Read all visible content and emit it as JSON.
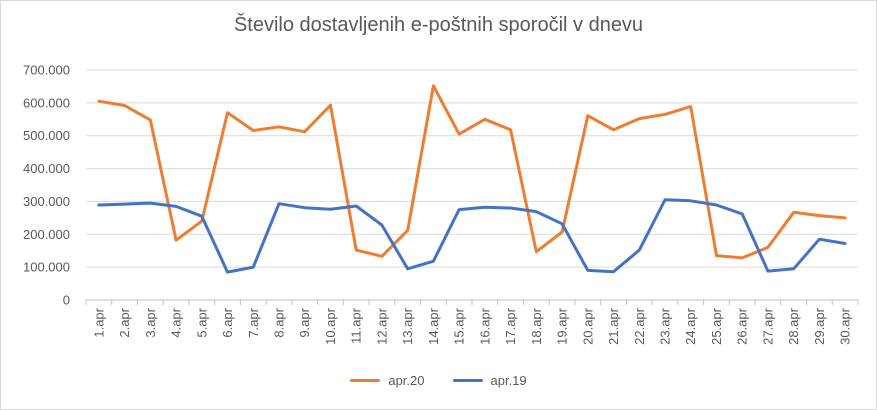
{
  "chart_data": {
    "type": "line",
    "title": "Število dostavljenih e-poštnih sporočil v dnevu",
    "xlabel": "",
    "ylabel": "",
    "ylim": [
      0,
      700000
    ],
    "yticks": [
      "0",
      "100.000",
      "200.000",
      "300.000",
      "400.000",
      "500.000",
      "600.000",
      "700.000"
    ],
    "ytick_values": [
      0,
      100000,
      200000,
      300000,
      400000,
      500000,
      600000,
      700000
    ],
    "categories": [
      "1.apr",
      "2.apr",
      "3.apr",
      "4.apr",
      "5.apr",
      "6.apr",
      "7.apr",
      "8.apr",
      "9.apr",
      "10.apr",
      "11.apr",
      "12.apr",
      "13.apr",
      "14.apr",
      "15.apr",
      "16.apr",
      "17.apr",
      "18.apr",
      "19.apr",
      "20.apr",
      "21.apr",
      "22.apr",
      "23.apr",
      "24.apr",
      "25.apr",
      "26.apr",
      "27.apr",
      "28.apr",
      "29.apr",
      "30.apr"
    ],
    "grid": true,
    "legend_position": "bottom",
    "series": [
      {
        "name": "apr.20",
        "color": "#ED7D31",
        "values": [
          605000,
          592000,
          548000,
          182000,
          240000,
          570000,
          516000,
          527000,
          512000,
          593000,
          152000,
          133000,
          212000,
          652000,
          505000,
          550000,
          518000,
          147000,
          207000,
          561000,
          518000,
          552000,
          565000,
          589000,
          135000,
          128000,
          160000,
          267000,
          257000,
          250000
        ]
      },
      {
        "name": "apr.19",
        "color": "#4472C4",
        "values": [
          289000,
          292000,
          295000,
          285000,
          255000,
          85000,
          100000,
          293000,
          281000,
          276000,
          286000,
          228000,
          95000,
          118000,
          275000,
          282000,
          280000,
          269000,
          232000,
          90000,
          86000,
          152000,
          305000,
          302000,
          289000,
          262000,
          88000,
          95000,
          185000,
          172000
        ]
      }
    ]
  }
}
